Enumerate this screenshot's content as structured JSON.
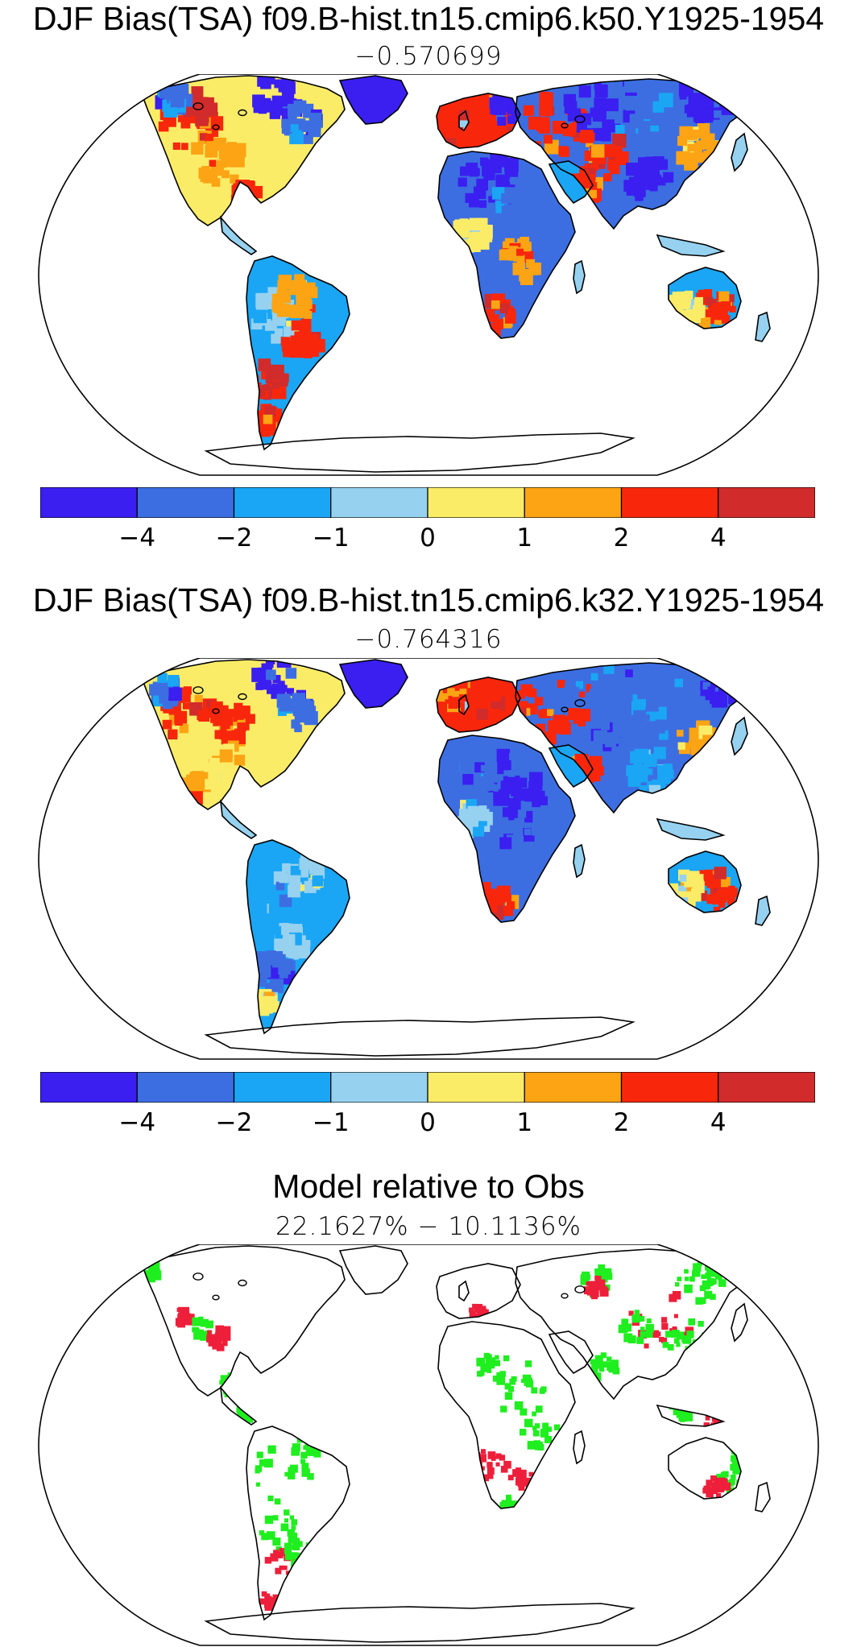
{
  "panels": [
    {
      "title": "DJF Bias(TSA) f09.B-hist.tn15.cmip6.k50.Y1925-1954",
      "subtitle": "−0.570699",
      "variant": "bias1"
    },
    {
      "title": "DJF Bias(TSA) f09.B-hist.tn15.cmip6.k32.Y1925-1954",
      "subtitle": "−0.764316",
      "variant": "bias2"
    },
    {
      "title": "Model relative to Obs",
      "subtitle": "22.1627% − 10.1136%",
      "variant": "relative"
    }
  ],
  "colorbar": {
    "colors": [
      "#3a1ff0",
      "#3c6ee2",
      "#1aa6f4",
      "#96d1f0",
      "#fbec68",
      "#fca414",
      "#f8270c",
      "#d12b2b"
    ],
    "labels": [
      "−4",
      "−2",
      "−1",
      "0",
      "1",
      "2",
      "4"
    ]
  },
  "relative_colors": {
    "better": "#1fee1f",
    "worse": "#ee1f3a"
  }
}
